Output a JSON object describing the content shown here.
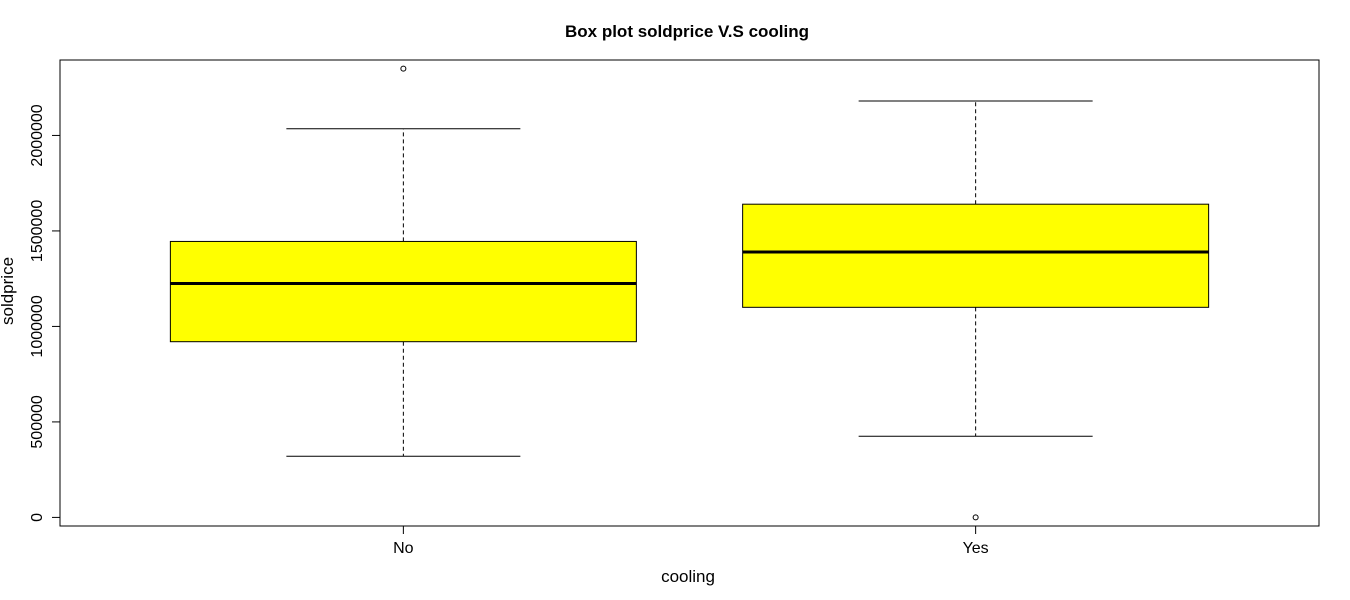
{
  "chart_data": {
    "type": "boxplot",
    "title": "Box plot soldprice V.S cooling",
    "xlabel": "cooling",
    "ylabel": "soldprice",
    "categories": [
      "No",
      "Yes"
    ],
    "ylim": [
      -45000,
      2395000
    ],
    "yticks": [
      0,
      500000,
      1000000,
      1500000,
      2000000
    ],
    "ytick_labels": [
      "0",
      "500000",
      "1000000",
      "1500000",
      "2000000"
    ],
    "box_color": "#ffff00",
    "boxes": [
      {
        "category": "No",
        "whisker_low": 320000,
        "q1": 920000,
        "median": 1225000,
        "q3": 1445000,
        "whisker_high": 2035000,
        "outliers": [
          2350000
        ]
      },
      {
        "category": "Yes",
        "whisker_low": 425000,
        "q1": 1100000,
        "median": 1390000,
        "q3": 1640000,
        "whisker_high": 2180000,
        "outliers": [
          0
        ]
      }
    ],
    "grid": false,
    "legend": "none"
  }
}
